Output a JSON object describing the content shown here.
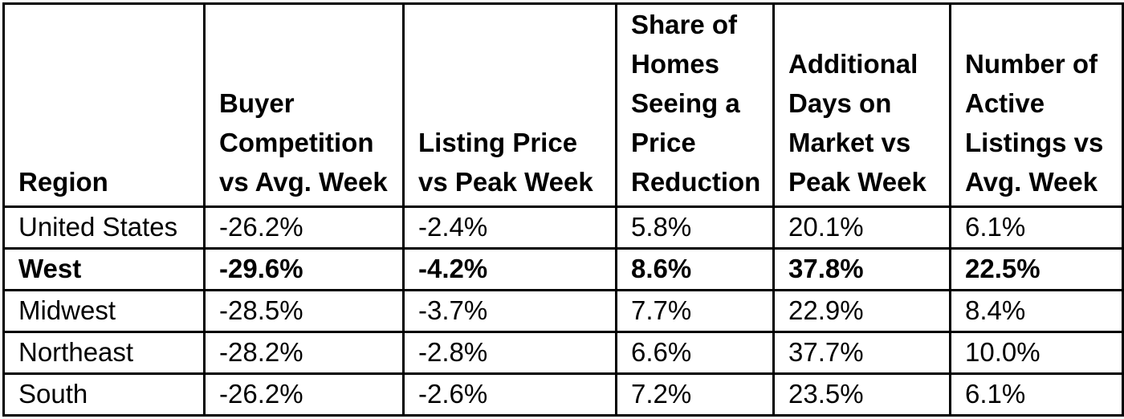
{
  "table": {
    "columns": [
      {
        "id": "region",
        "label": "Region"
      },
      {
        "id": "buyer-competition",
        "label": "Buyer\nCompetition\nvs Avg. Week"
      },
      {
        "id": "listing-price",
        "label": "Listing Price\nvs Peak Week"
      },
      {
        "id": "price-reduction",
        "label": "Share of\nHomes\nSeeing a\nPrice\nReduction"
      },
      {
        "id": "days-on-market",
        "label": "Additional\nDays on\nMarket vs\nPeak Week"
      },
      {
        "id": "active-listings",
        "label": "Number of\nActive\nListings vs\nAvg. Week"
      }
    ],
    "rows": [
      {
        "region": "United States",
        "bold": false,
        "values": [
          "-26.2%",
          "-2.4%",
          "5.8%",
          "20.1%",
          "6.1%"
        ]
      },
      {
        "region": "West",
        "bold": true,
        "values": [
          "-29.6%",
          "-4.2%",
          "8.6%",
          "37.8%",
          "22.5%"
        ]
      },
      {
        "region": "Midwest",
        "bold": false,
        "values": [
          "-28.5%",
          "-3.7%",
          "7.7%",
          "22.9%",
          "8.4%"
        ]
      },
      {
        "region": "Northeast",
        "bold": false,
        "values": [
          "-28.2%",
          "-2.8%",
          "6.6%",
          "37.7%",
          "10.0%"
        ]
      },
      {
        "region": "South",
        "bold": false,
        "values": [
          "-26.2%",
          "-2.6%",
          "7.2%",
          "23.5%",
          "6.1%"
        ]
      }
    ],
    "colors": {
      "border": "#000000",
      "text": "#000000",
      "background": "#ffffff"
    }
  },
  "chart_data": {
    "type": "table",
    "columns": [
      "Region",
      "Buyer Competition vs Avg. Week",
      "Listing Price vs Peak Week",
      "Share of Homes Seeing a Price Reduction",
      "Additional Days on Market vs Peak Week",
      "Number of Active Listings vs Avg. Week"
    ],
    "rows": [
      [
        "United States",
        "-26.2%",
        "-2.4%",
        "5.8%",
        "20.1%",
        "6.1%"
      ],
      [
        "West",
        "-29.6%",
        "-4.2%",
        "8.6%",
        "37.8%",
        "22.5%"
      ],
      [
        "Midwest",
        "-28.5%",
        "-3.7%",
        "7.7%",
        "22.9%",
        "8.4%"
      ],
      [
        "Northeast",
        "-28.2%",
        "-2.8%",
        "6.6%",
        "37.7%",
        "10.0%"
      ],
      [
        "South",
        "-26.2%",
        "-2.6%",
        "7.2%",
        "23.5%",
        "6.1%"
      ]
    ],
    "highlighted_row": "West"
  }
}
